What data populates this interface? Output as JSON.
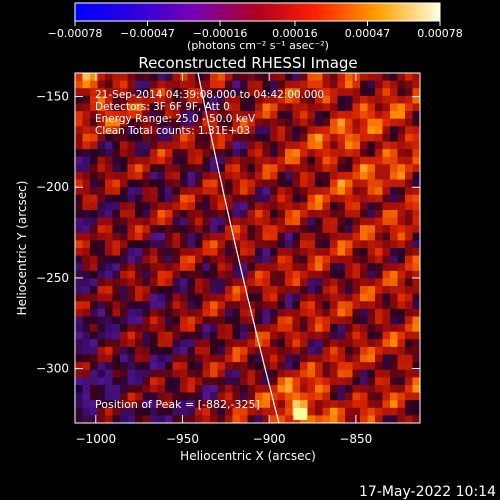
{
  "chart_data": {
    "type": "heatmap",
    "title": "Reconstructed RHESSI Image",
    "xlabel": "Heliocentric X (arcsec)",
    "ylabel": "Heliocentric Y (arcsec)",
    "xlim": [
      -1012,
      -813
    ],
    "ylim": [
      -330,
      -137
    ],
    "xticks": [
      -1000,
      -950,
      -900,
      -850
    ],
    "yticks": [
      -150,
      -200,
      -250,
      -300
    ],
    "colorbar": {
      "ticks": [
        "-0.00078",
        "-0.00047",
        "-0.00016",
        "0.00016",
        "0.00047",
        "0.00078"
      ],
      "range": [
        -0.00078,
        0.00078
      ],
      "unit_label": "(photons cm⁻² s⁻¹ asec⁻²)"
    },
    "annotations": [
      "21-Sep-2014 04:39:08.000 to 04:42:00.000",
      "Detectors: 3F 6F 9F, Att 0",
      "Energy Range: 25.0 - 50.0 keV",
      "Clean     Total counts: 1.31E+03"
    ],
    "peak_label": "Position of Peak = [-882,-325]",
    "peak": [
      -882,
      -325
    ],
    "footer_date": "17-May-2022 10:14"
  }
}
